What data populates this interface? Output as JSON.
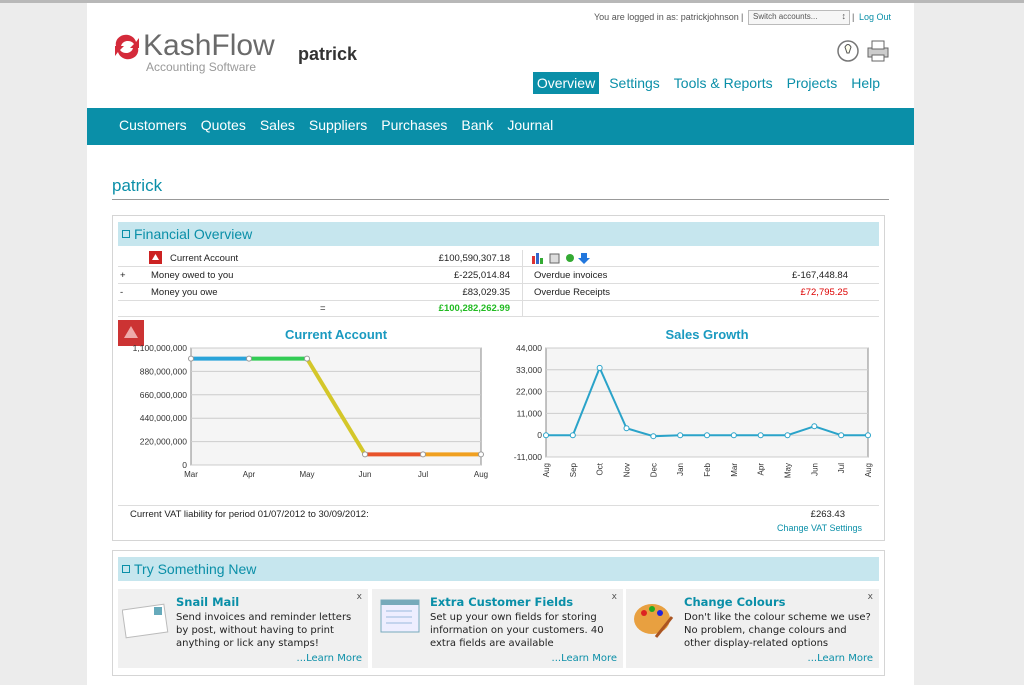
{
  "header": {
    "login_text": "You are logged in as: patrickjohnson",
    "switch_accounts": "Switch accounts...",
    "logout": "Log Out",
    "logo": "KashFlow",
    "logo_sub": "Accounting Software",
    "company": "patrick"
  },
  "top_nav": [
    "Overview",
    "Settings",
    "Tools & Reports",
    "Projects",
    "Help"
  ],
  "main_nav": [
    "Customers",
    "Quotes",
    "Sales",
    "Suppliers",
    "Purchases",
    "Bank",
    "Journal"
  ],
  "page_title": "patrick",
  "financial_overview": {
    "title": "Financial Overview",
    "current_account": {
      "label": "Current Account",
      "amount": "£100,590,307.18"
    },
    "owed_to_you": {
      "sign": "+",
      "label": "Money owed to you",
      "amount": "£-225,014.84",
      "label2": "Overdue invoices",
      "amount2": "£-167,448.84"
    },
    "you_owe": {
      "sign": "-",
      "label": "Money you owe",
      "amount": "£83,029.35",
      "label2": "Overdue Receipts",
      "amount2": "£72,795.25"
    },
    "total": {
      "sign": "=",
      "amount": "£100,282,262.99"
    },
    "vat_text": "Current VAT liability for period 01/07/2012 to 30/09/2012:",
    "vat_amount": "£263.43",
    "vat_link": "Change VAT Settings"
  },
  "chart_data": [
    {
      "type": "line",
      "title": "Current Account",
      "categories": [
        "Mar",
        "Apr",
        "May",
        "Jun",
        "Jul",
        "Aug"
      ],
      "values": [
        1000000000,
        1000000000,
        1000000000,
        100000000,
        100000000,
        100000000
      ],
      "segment_colors": [
        "#2aa3d9",
        "#33cc55",
        "#d4c72a",
        "#e8532a",
        "#f0a020"
      ],
      "ylim": [
        0,
        1100000000
      ],
      "yticks": [
        0,
        {
          "value": 220000000,
          "label": "220,000,000"
        },
        {
          "value": 440000000,
          "label": "440,000,000"
        },
        {
          "value": 660000000,
          "label": "660,000,000"
        },
        {
          "value": 880000000,
          "label": "880,000,000"
        },
        {
          "value": 1100000000,
          "label": "1,100,000,000"
        }
      ],
      "grid": true
    },
    {
      "type": "line",
      "title": "Sales Growth",
      "categories": [
        "Aug",
        "Sep",
        "Oct",
        "Nov",
        "Dec",
        "Jan",
        "Feb",
        "Mar",
        "Apr",
        "May",
        "Jun",
        "Jul",
        "Aug"
      ],
      "values": [
        0,
        0,
        34000,
        3500,
        -500,
        0,
        0,
        0,
        0,
        0,
        4500,
        0,
        0
      ],
      "color": "#2aa3c9",
      "ylim": [
        -11000,
        44000
      ],
      "yticks": [
        {
          "value": -11000,
          "label": "-11,000"
        },
        0,
        {
          "value": 11000,
          "label": "11,000"
        },
        {
          "value": 22000,
          "label": "22,000"
        },
        {
          "value": 33000,
          "label": "33,000"
        },
        {
          "value": 44000,
          "label": "44,000"
        }
      ],
      "grid": true
    }
  ],
  "try_something_new": {
    "title": "Try Something New",
    "cards": [
      {
        "title": "Snail Mail",
        "text": "Send invoices and reminder letters by post, without having to print anything or lick any stamps!",
        "link": "...Learn More",
        "close": "x"
      },
      {
        "title": "Extra Customer Fields",
        "text": "Set up your own fields for storing information on your customers. 40 extra fields are available",
        "link": "...Learn More",
        "close": "x"
      },
      {
        "title": "Change Colours",
        "text": "Don't like the colour scheme we use? No problem, change colours and other display-related options",
        "link": "...Learn More",
        "close": "x"
      }
    ]
  }
}
